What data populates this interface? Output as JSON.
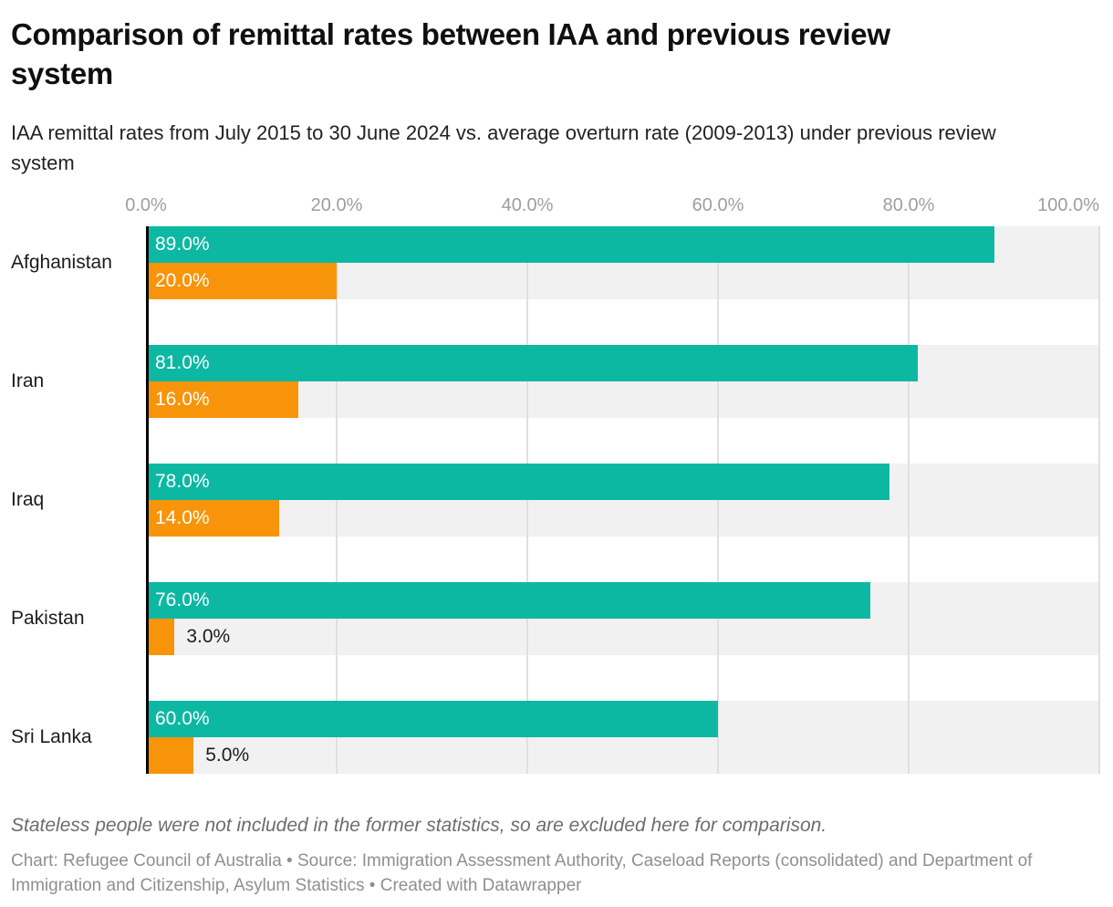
{
  "header": {
    "title": "Comparison of remittal rates between IAA and previous review system",
    "subtitle": "IAA remittal rates from July 2015 to 30 June 2024 vs. average overturn rate (2009-2013) under previous review system"
  },
  "footer": {
    "note": "Stateless people were not included in the former statistics, so are excluded here for comparison.",
    "credits": "Chart: Refugee Council of Australia • Source: Immigration Assessment Authority, Caseload Reports (consolidated) and Department of Immigration and Citizenship, Asylum Statistics • Created with Datawrapper"
  },
  "colors": {
    "iaa_teal": "#0db8a3",
    "previous_orange": "#f8940a",
    "track_gray": "#f1f1f2",
    "gridline_gray": "#e0e0e0",
    "axis_black": "#050505"
  },
  "chart_data": {
    "type": "bar",
    "orientation": "horizontal",
    "title": "Comparison of remittal rates between IAA and previous review system",
    "subtitle": "IAA remittal rates from July 2015 to 30 June 2024 vs. average overturn rate (2009-2013) under previous review system",
    "categories": [
      "Afghanistan",
      "Iran",
      "Iraq",
      "Pakistan",
      "Sri Lanka"
    ],
    "series": [
      {
        "name": "IAA remittal rate (July 2015 to 30 June 2024)",
        "color": "#0db8a3",
        "values": [
          89.0,
          81.0,
          78.0,
          76.0,
          60.0
        ],
        "labels": [
          "89.0%",
          "81.0%",
          "78.0%",
          "76.0%",
          "60.0%"
        ]
      },
      {
        "name": "Previous review system average overturn rate (2009-2013)",
        "color": "#f8940a",
        "values": [
          20.0,
          16.0,
          14.0,
          3.0,
          5.0
        ],
        "labels": [
          "20.0%",
          "16.0%",
          "14.0%",
          "3.0%",
          "5.0%"
        ]
      }
    ],
    "xlim": [
      0,
      100
    ],
    "x_ticks": [
      {
        "pct": 0,
        "label": "0.0%"
      },
      {
        "pct": 20,
        "label": "20.0%"
      },
      {
        "pct": 40,
        "label": "40.0%"
      },
      {
        "pct": 60,
        "label": "60.0%"
      },
      {
        "pct": 80,
        "label": "80.0%"
      },
      {
        "pct": 100,
        "label": "100.0%"
      }
    ],
    "grid": true,
    "legend": "none",
    "value_label_outside_threshold": 7
  }
}
